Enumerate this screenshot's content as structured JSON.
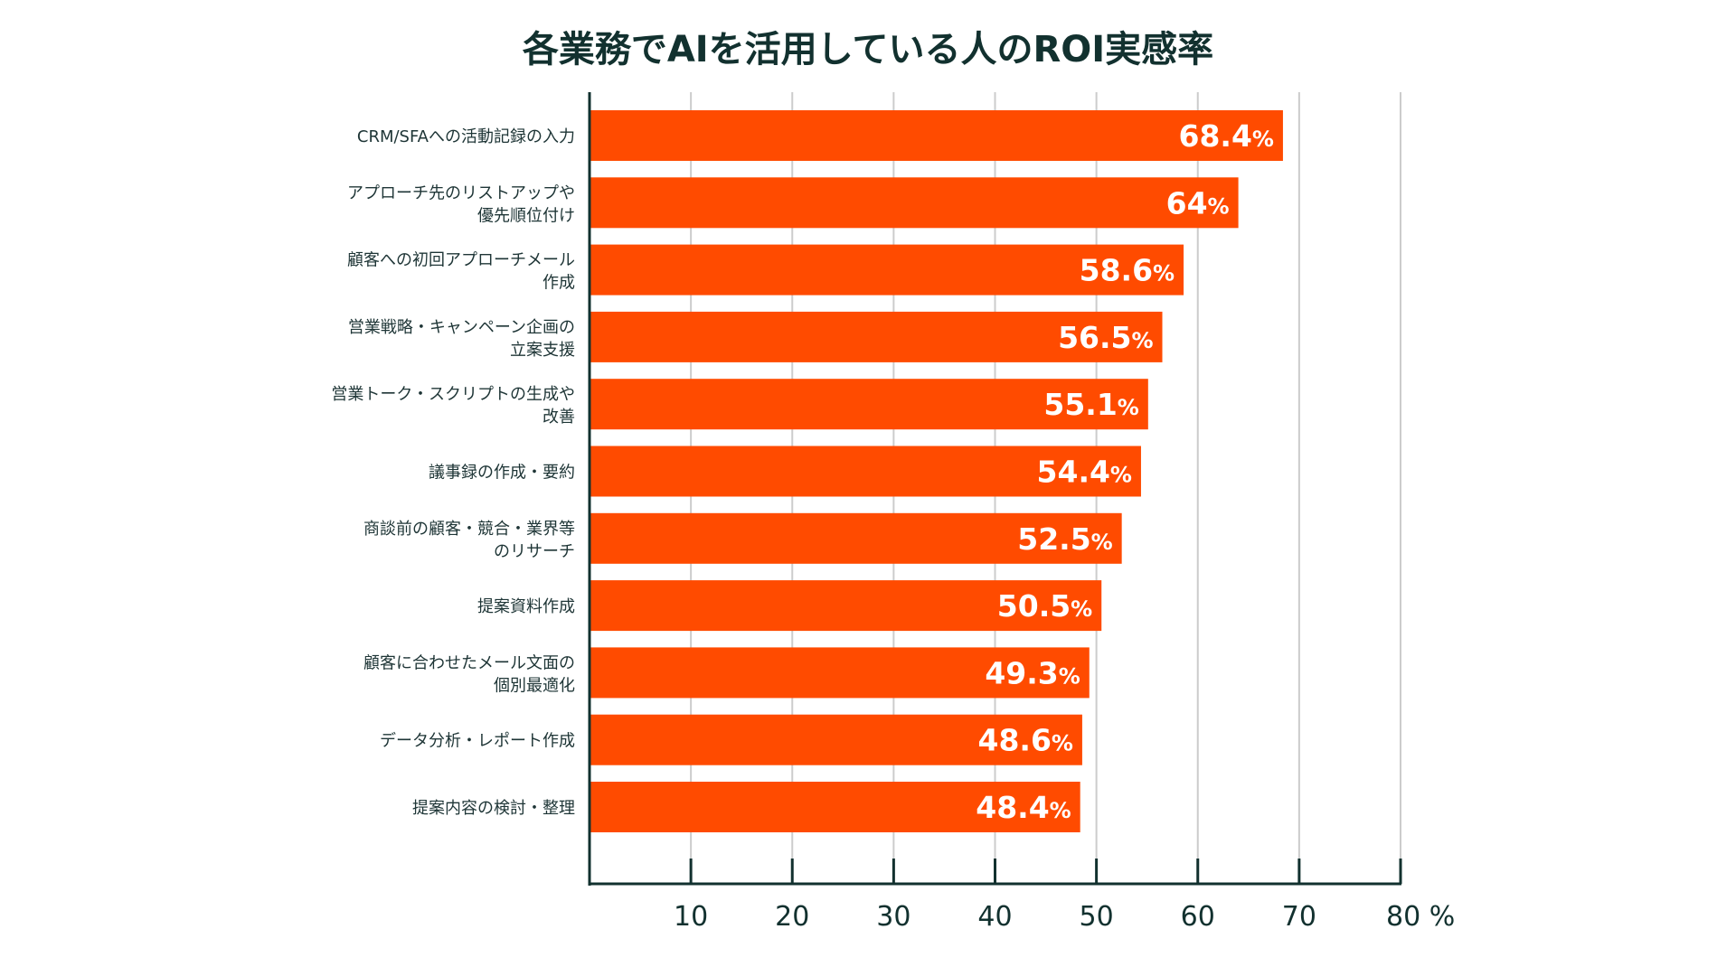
{
  "chart_data": {
    "type": "bar",
    "orientation": "horizontal",
    "title": "各業務でAIを活用している人のROI実感率",
    "xlabel": "",
    "ylabel": "",
    "unit": "%",
    "xlim": [
      0,
      80
    ],
    "xticks": [
      10,
      20,
      30,
      40,
      50,
      60,
      70,
      80
    ],
    "xtick_labels": [
      "10",
      "20",
      "30",
      "40",
      "50",
      "60",
      "70",
      "80 %"
    ],
    "grid": true,
    "categories": [
      [
        "CRM/SFAへの活動記録の入力"
      ],
      [
        "アプローチ先のリストアップや",
        "優先順位付け"
      ],
      [
        "顧客への初回アプローチメール",
        "作成"
      ],
      [
        "営業戦略・キャンペーン企画の",
        "立案支援"
      ],
      [
        "営業トーク・スクリプトの生成や",
        "改善"
      ],
      [
        "議事録の作成・要約"
      ],
      [
        "商談前の顧客・競合・業界等",
        "のリサーチ"
      ],
      [
        "提案資料作成"
      ],
      [
        "顧客に合わせたメール文面の",
        "個別最適化"
      ],
      [
        "データ分析・レポート作成"
      ],
      [
        "提案内容の検討・整理"
      ]
    ],
    "values": [
      68.4,
      64,
      58.6,
      56.5,
      55.1,
      54.4,
      52.5,
      50.5,
      49.3,
      48.6,
      48.4
    ],
    "value_labels": [
      "68.4",
      "64",
      "58.6",
      "56.5",
      "55.1",
      "54.4",
      "52.5",
      "50.5",
      "49.3",
      "48.6",
      "48.4"
    ],
    "value_suffix": "%",
    "colors": {
      "bar": "#ff4b00",
      "axis": "#12312f",
      "grid": "#cccccc",
      "text": "#1e3536",
      "label": "#ffffff"
    }
  }
}
